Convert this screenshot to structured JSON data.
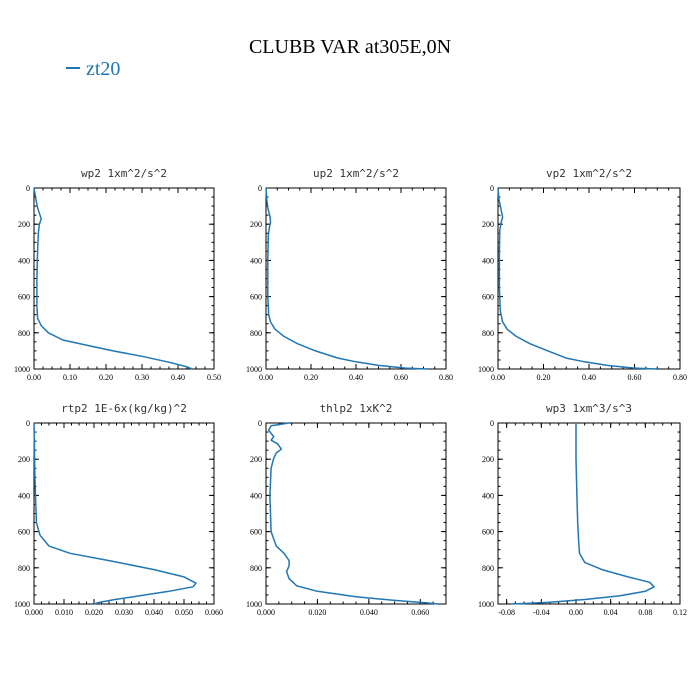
{
  "title": "CLUBB VAR at305E,0N",
  "legend": {
    "label": "zt20",
    "color": "#1f77b4"
  },
  "colors": {
    "line": "#1f77b4",
    "axis": "#000000"
  },
  "chart_data": [
    {
      "type": "line",
      "title": "wp2   1xm^2/s^2",
      "xlim": [
        0,
        0.5
      ],
      "xticks": [
        "0.00",
        "0.10",
        "0.20",
        "0.30",
        "0.40",
        "0.50"
      ],
      "ylim": [
        0,
        1000
      ],
      "y_inverted": true,
      "yticks": [
        "0",
        "200",
        "400",
        "600",
        "800",
        "1000"
      ],
      "series": [
        {
          "x": [
            0.0,
            0.005,
            0.01,
            0.015,
            0.02,
            0.015,
            0.012,
            0.01,
            0.008,
            0.008,
            0.01,
            0.02,
            0.04,
            0.08,
            0.15,
            0.22,
            0.3,
            0.37,
            0.42,
            0.44
          ],
          "y": [
            0,
            60,
            110,
            140,
            170,
            200,
            250,
            350,
            500,
            650,
            720,
            760,
            800,
            840,
            870,
            900,
            930,
            960,
            985,
            1000
          ]
        }
      ]
    },
    {
      "type": "line",
      "title": "up2   1xm^2/s^2",
      "xlim": [
        0,
        0.8
      ],
      "xticks": [
        "0.00",
        "0.20",
        "0.40",
        "0.60",
        "0.80"
      ],
      "ylim": [
        0,
        1000
      ],
      "y_inverted": true,
      "yticks": [
        "0",
        "200",
        "400",
        "600",
        "800",
        "1000"
      ],
      "series": [
        {
          "x": [
            0.0,
            0.003,
            0.008,
            0.018,
            0.02,
            0.016,
            0.01,
            0.008,
            0.008,
            0.012,
            0.02,
            0.04,
            0.08,
            0.14,
            0.22,
            0.32,
            0.4,
            0.5,
            0.62,
            0.72
          ],
          "y": [
            0,
            60,
            110,
            160,
            190,
            210,
            260,
            400,
            600,
            700,
            740,
            780,
            820,
            860,
            900,
            940,
            960,
            980,
            995,
            1000
          ]
        }
      ]
    },
    {
      "type": "line",
      "title": "vp2   1xm^2/s^2",
      "xlim": [
        0,
        0.8
      ],
      "xticks": [
        "0.00",
        "0.20",
        "0.40",
        "0.60",
        "0.80"
      ],
      "ylim": [
        0,
        1000
      ],
      "y_inverted": true,
      "yticks": [
        "0",
        "200",
        "400",
        "600",
        "800",
        "1000"
      ],
      "series": [
        {
          "x": [
            0.0,
            0.004,
            0.012,
            0.02,
            0.014,
            0.008,
            0.006,
            0.006,
            0.01,
            0.02,
            0.04,
            0.08,
            0.14,
            0.22,
            0.3,
            0.38,
            0.48,
            0.6,
            0.7
          ],
          "y": [
            0,
            60,
            110,
            160,
            190,
            230,
            350,
            550,
            680,
            740,
            780,
            820,
            860,
            900,
            940,
            960,
            980,
            995,
            1000
          ]
        }
      ]
    },
    {
      "type": "line",
      "title": "rtp2   1E-6x(kg/kg)^2",
      "xlim": [
        0,
        0.06
      ],
      "xticks": [
        "0.000",
        "0.010",
        "0.020",
        "0.030",
        "0.040",
        "0.050",
        "0.060"
      ],
      "ylim": [
        0,
        1000
      ],
      "y_inverted": true,
      "yticks": [
        "0",
        "200",
        "400",
        "600",
        "800",
        "1000"
      ],
      "series": [
        {
          "x": [
            0.0,
            0.0003,
            0.0008,
            0.002,
            0.005,
            0.012,
            0.025,
            0.04,
            0.05,
            0.054,
            0.053,
            0.045,
            0.035,
            0.027,
            0.022,
            0.02
          ],
          "y": [
            0,
            300,
            550,
            620,
            680,
            720,
            760,
            810,
            850,
            885,
            905,
            930,
            955,
            975,
            990,
            1000
          ]
        }
      ]
    },
    {
      "type": "line",
      "title": "thlp2   1xK^2",
      "xlim": [
        0,
        0.07
      ],
      "xticks": [
        "0.000",
        "0.020",
        "0.040",
        "0.060"
      ],
      "ylim": [
        0,
        1000
      ],
      "y_inverted": true,
      "yticks": [
        "0",
        "200",
        "400",
        "600",
        "800",
        "1000"
      ],
      "series": [
        {
          "x": [
            0.009,
            0.002,
            0.001,
            0.003,
            0.002,
            0.0045,
            0.006,
            0.004,
            0.003,
            0.002,
            0.0015,
            0.002,
            0.004,
            0.007,
            0.009,
            0.009,
            0.008,
            0.009,
            0.012,
            0.02,
            0.035,
            0.05,
            0.062,
            0.067
          ],
          "y": [
            0,
            15,
            40,
            75,
            95,
            115,
            145,
            165,
            195,
            250,
            400,
            600,
            680,
            720,
            760,
            790,
            820,
            860,
            900,
            930,
            960,
            980,
            993,
            1000
          ]
        }
      ]
    },
    {
      "type": "line",
      "title": "wp3   1xm^3/s^3",
      "xlim": [
        -0.09,
        0.12
      ],
      "xticks": [
        "-0.08",
        "-0.04",
        "0.00",
        "0.04",
        "0.08",
        "0.12"
      ],
      "ylim": [
        0,
        1000
      ],
      "y_inverted": true,
      "yticks": [
        "0",
        "200",
        "400",
        "600",
        "800",
        "1000"
      ],
      "series": [
        {
          "x": [
            0.0,
            0.0,
            0.001,
            0.002,
            0.003,
            0.004,
            0.01,
            0.03,
            0.06,
            0.085,
            0.09,
            0.08,
            0.05,
            0.01,
            -0.03,
            -0.06,
            -0.075
          ],
          "y": [
            0,
            200,
            400,
            550,
            650,
            720,
            770,
            810,
            850,
            880,
            905,
            930,
            955,
            975,
            990,
            997,
            1000
          ]
        }
      ]
    }
  ]
}
